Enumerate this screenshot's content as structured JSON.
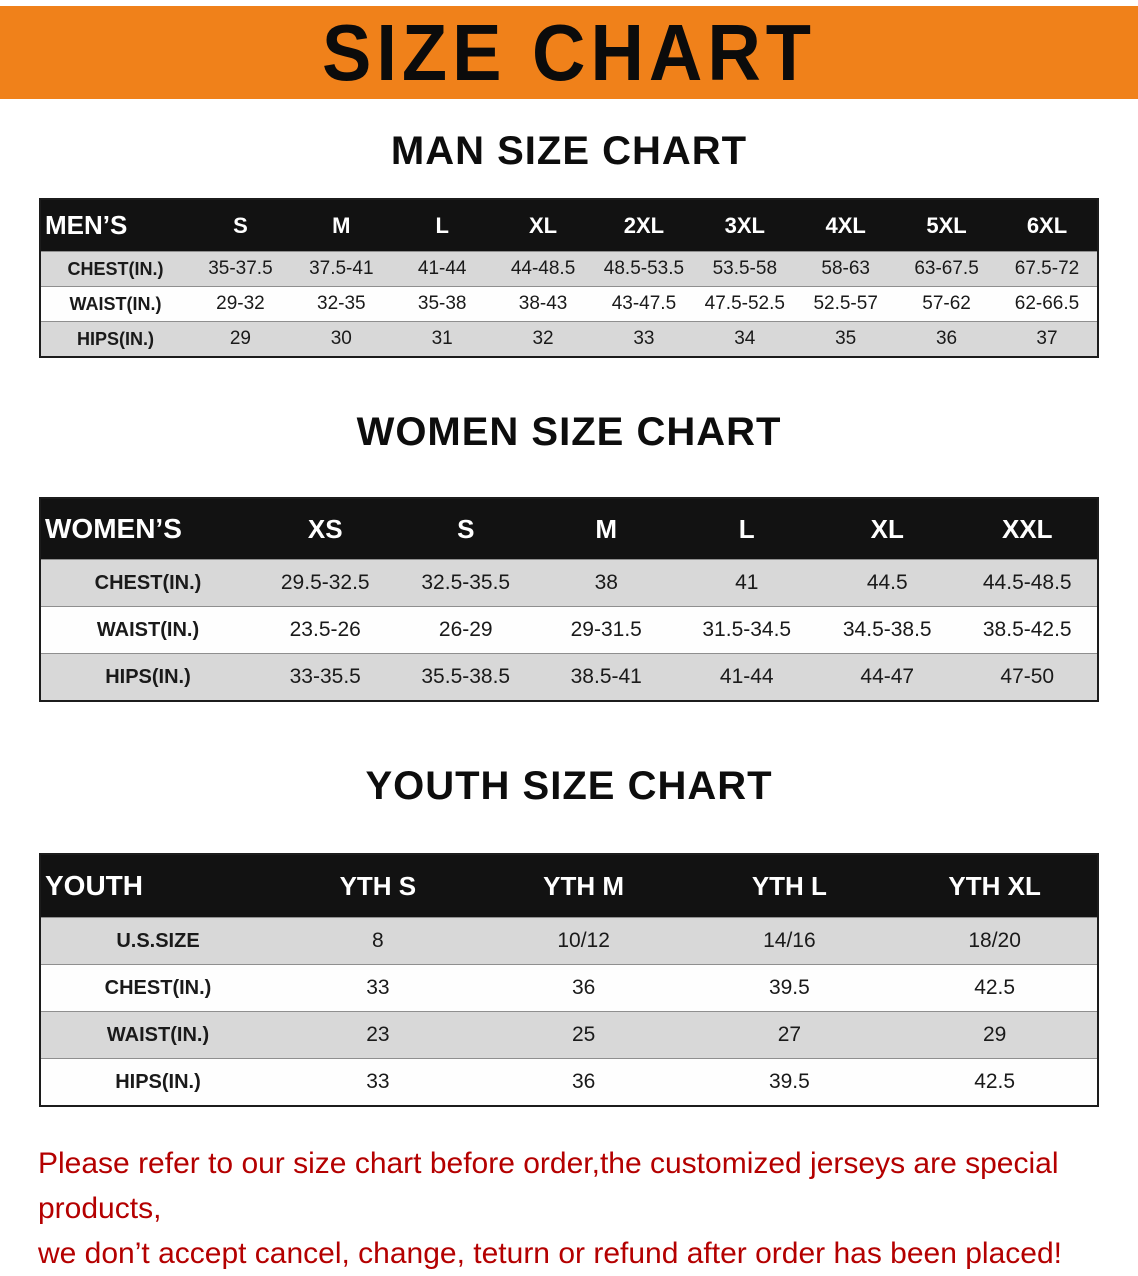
{
  "banner": {
    "title": "SIZE CHART",
    "bg_color": "#f0811a"
  },
  "man": {
    "heading": "MAN SIZE CHART",
    "table": {
      "header": [
        "MEN’S",
        "S",
        "M",
        "L",
        "XL",
        "2XL",
        "3XL",
        "4XL",
        "5XL",
        "6XL"
      ],
      "rows": [
        [
          "CHEST(IN.)",
          "35-37.5",
          "37.5-41",
          "41-44",
          "44-48.5",
          "48.5-53.5",
          "53.5-58",
          "58-63",
          "63-67.5",
          "67.5-72"
        ],
        [
          "WAIST(IN.)",
          "29-32",
          "32-35",
          "35-38",
          "38-43",
          "43-47.5",
          "47.5-52.5",
          "52.5-57",
          "57-62",
          "62-66.5"
        ],
        [
          "HIPS(IN.)",
          "29",
          "30",
          "31",
          "32",
          "33",
          "34",
          "35",
          "36",
          "37"
        ]
      ]
    }
  },
  "women": {
    "heading": "WOMEN SIZE CHART",
    "table": {
      "header": [
        "WOMEN’S",
        "XS",
        "S",
        "M",
        "L",
        "XL",
        "XXL"
      ],
      "rows": [
        [
          "CHEST(IN.)",
          "29.5-32.5",
          "32.5-35.5",
          "38",
          "41",
          "44.5",
          "44.5-48.5"
        ],
        [
          "WAIST(IN.)",
          "23.5-26",
          "26-29",
          "29-31.5",
          "31.5-34.5",
          "34.5-38.5",
          "38.5-42.5"
        ],
        [
          "HIPS(IN.)",
          "33-35.5",
          "35.5-38.5",
          "38.5-41",
          "41-44",
          "44-47",
          "47-50"
        ]
      ]
    }
  },
  "youth": {
    "heading": "YOUTH SIZE CHART",
    "table": {
      "header": [
        "YOUTH",
        "YTH S",
        "YTH M",
        "YTH L",
        "YTH XL"
      ],
      "rows": [
        [
          "U.S.SIZE",
          "8",
          "10/12",
          "14/16",
          "18/20"
        ],
        [
          "CHEST(IN.)",
          "33",
          "36",
          "39.5",
          "42.5"
        ],
        [
          "WAIST(IN.)",
          "23",
          "25",
          "27",
          "29"
        ],
        [
          "HIPS(IN.)",
          "33",
          "36",
          "39.5",
          "42.5"
        ]
      ]
    }
  },
  "footer": {
    "color": "#b40000",
    "line1": "Please refer to our size chart before order,the customized jerseys are special products,",
    "line2": "we don’t accept cancel, change, teturn or refund after order has been placed!"
  }
}
